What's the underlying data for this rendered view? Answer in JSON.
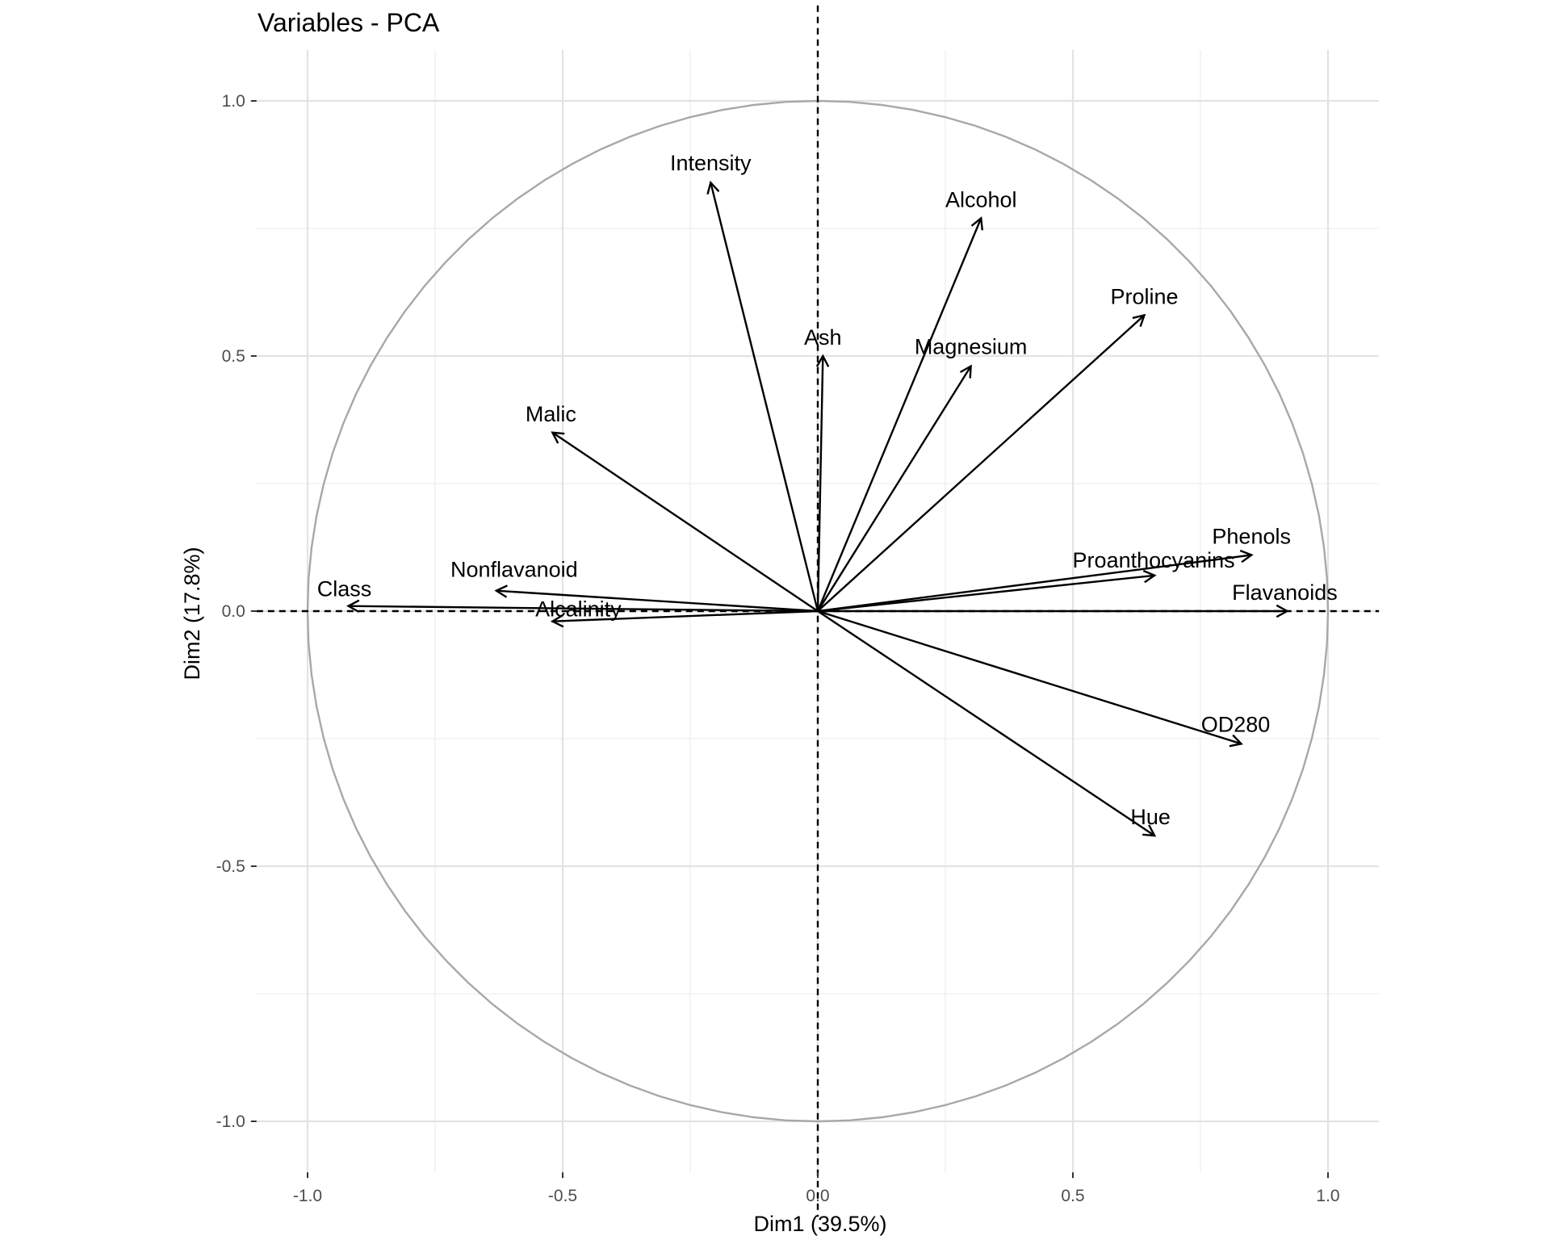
{
  "chart_data": {
    "type": "scatter",
    "subtype": "pca-variable-correlation-circle",
    "title": "Variables - PCA",
    "xlabel": "Dim1 (39.5%)",
    "ylabel": "Dim2 (17.8%)",
    "xlim": [
      -1.1,
      1.1
    ],
    "ylim": [
      -1.1,
      1.1
    ],
    "xticks": [
      -1.0,
      -0.5,
      0.0,
      0.5,
      1.0
    ],
    "xtick_labels": [
      "-1.0",
      "-0.5",
      "0.0",
      "0.5",
      "1.0"
    ],
    "yticks": [
      -1.0,
      -0.5,
      0.0,
      0.5,
      1.0
    ],
    "ytick_labels": [
      "-1.0",
      "-0.5",
      "0.0",
      "0.5",
      "1.0"
    ],
    "grid": true,
    "unit_circle": true,
    "reference_lines": [
      "x=0",
      "y=0"
    ],
    "variables": [
      {
        "name": "Class",
        "x": -0.92,
        "y": 0.01
      },
      {
        "name": "Nonflavanoid",
        "x": -0.63,
        "y": 0.04
      },
      {
        "name": "Alcalinity",
        "x": -0.52,
        "y": -0.02
      },
      {
        "name": "Malic",
        "x": -0.52,
        "y": 0.35
      },
      {
        "name": "Intensity",
        "x": -0.21,
        "y": 0.84
      },
      {
        "name": "Ash",
        "x": 0.01,
        "y": 0.5
      },
      {
        "name": "Alcohol",
        "x": 0.32,
        "y": 0.77
      },
      {
        "name": "Magnesium",
        "x": 0.3,
        "y": 0.48
      },
      {
        "name": "Proline",
        "x": 0.64,
        "y": 0.58
      },
      {
        "name": "Phenols",
        "x": 0.85,
        "y": 0.11
      },
      {
        "name": "Proanthocyanins",
        "x": 0.66,
        "y": 0.07
      },
      {
        "name": "Flavanoids",
        "x": 0.92,
        "y": 0.0
      },
      {
        "name": "OD280",
        "x": 0.83,
        "y": -0.26
      },
      {
        "name": "Hue",
        "x": 0.66,
        "y": -0.44
      }
    ]
  }
}
